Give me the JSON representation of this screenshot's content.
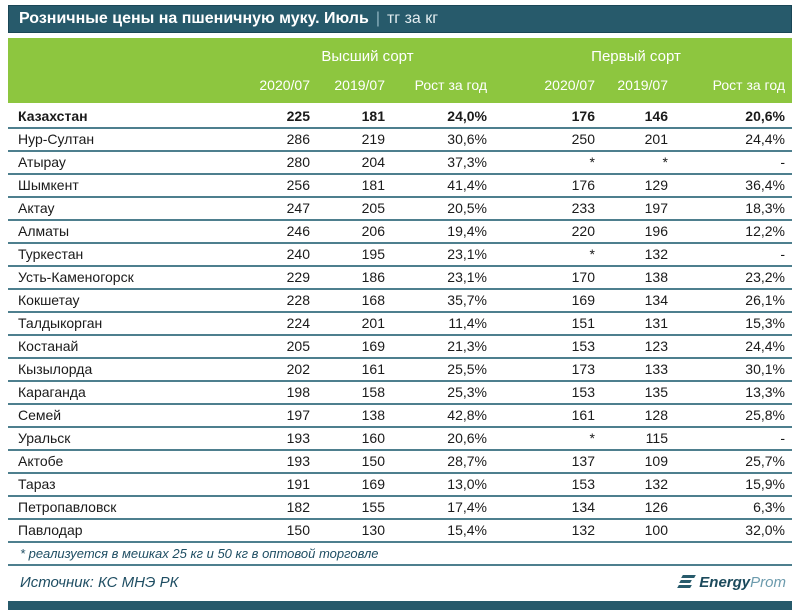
{
  "title": {
    "main": "Розничные цены на пшеничную муку. Июль",
    "separator": "|",
    "unit": "тг за кг"
  },
  "header": {
    "groups": [
      {
        "label": "Высший сорт"
      },
      {
        "label": "Первый сорт"
      }
    ],
    "columns": [
      "2020/07",
      "2019/07",
      "Рост за год",
      "2020/07",
      "2019/07",
      "Рост за год"
    ]
  },
  "chart_data": {
    "type": "table",
    "title": "Розничные цены на пшеничную муку. Июль | тг за кг",
    "column_groups": [
      "Высший сорт",
      "Первый сорт"
    ],
    "columns": [
      "2020/07",
      "2019/07",
      "Рост за год",
      "2020/07",
      "2019/07",
      "Рост за год"
    ],
    "rows": [
      {
        "name": "Казахстан",
        "bold": true,
        "values": [
          "225",
          "181",
          "24,0%",
          "176",
          "146",
          "20,6%"
        ]
      },
      {
        "name": "Нур-Султан",
        "values": [
          "286",
          "219",
          "30,6%",
          "250",
          "201",
          "24,4%"
        ]
      },
      {
        "name": "Атырау",
        "values": [
          "280",
          "204",
          "37,3%",
          "*",
          "*",
          "-"
        ]
      },
      {
        "name": "Шымкент",
        "values": [
          "256",
          "181",
          "41,4%",
          "176",
          "129",
          "36,4%"
        ]
      },
      {
        "name": "Актау",
        "values": [
          "247",
          "205",
          "20,5%",
          "233",
          "197",
          "18,3%"
        ]
      },
      {
        "name": "Алматы",
        "values": [
          "246",
          "206",
          "19,4%",
          "220",
          "196",
          "12,2%"
        ]
      },
      {
        "name": "Туркестан",
        "values": [
          "240",
          "195",
          "23,1%",
          "*",
          "132",
          "-"
        ]
      },
      {
        "name": "Усть-Каменогорск",
        "values": [
          "229",
          "186",
          "23,1%",
          "170",
          "138",
          "23,2%"
        ]
      },
      {
        "name": "Кокшетау",
        "values": [
          "228",
          "168",
          "35,7%",
          "169",
          "134",
          "26,1%"
        ]
      },
      {
        "name": "Талдыкорган",
        "values": [
          "224",
          "201",
          "11,4%",
          "151",
          "131",
          "15,3%"
        ]
      },
      {
        "name": "Костанай",
        "values": [
          "205",
          "169",
          "21,3%",
          "153",
          "123",
          "24,4%"
        ]
      },
      {
        "name": "Кызылорда",
        "values": [
          "202",
          "161",
          "25,5%",
          "173",
          "133",
          "30,1%"
        ]
      },
      {
        "name": "Караганда",
        "values": [
          "198",
          "158",
          "25,3%",
          "153",
          "135",
          "13,3%"
        ]
      },
      {
        "name": "Семей",
        "values": [
          "197",
          "138",
          "42,8%",
          "161",
          "128",
          "25,8%"
        ]
      },
      {
        "name": "Уральск",
        "values": [
          "193",
          "160",
          "20,6%",
          "*",
          "115",
          "-"
        ]
      },
      {
        "name": "Актобе",
        "values": [
          "193",
          "150",
          "28,7%",
          "137",
          "109",
          "25,7%"
        ]
      },
      {
        "name": "Тараз",
        "values": [
          "191",
          "169",
          "13,0%",
          "153",
          "132",
          "15,9%"
        ]
      },
      {
        "name": "Петропавловск",
        "values": [
          "182",
          "155",
          "17,4%",
          "134",
          "126",
          "6,3%"
        ]
      },
      {
        "name": "Павлодар",
        "values": [
          "150",
          "130",
          "15,4%",
          "132",
          "100",
          "32,0%"
        ]
      }
    ]
  },
  "footnote": "* реализуется в мешках 25 кг и 50 кг в оптовой торговле",
  "source": "Источник: КС МНЭ РК",
  "logo": {
    "bold": "Energy",
    "light": "Prom"
  },
  "colors": {
    "teal": "#275A6B",
    "green": "#8DC63F",
    "divider": "#4E7F8E",
    "text": "#1A1A1A",
    "note": "#1F4E63",
    "logo-dark": "#1C4A5C",
    "logo-light": "#6C9BAD"
  }
}
